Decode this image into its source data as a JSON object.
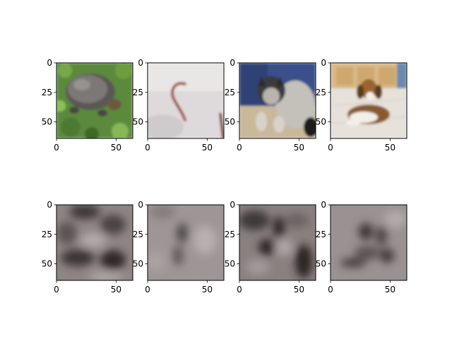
{
  "chart_data": {
    "type": "image-grid",
    "rows": 2,
    "cols": 4,
    "xlim": [
      0,
      64
    ],
    "ylim": [
      64,
      0
    ],
    "xticks": [
      0,
      50
    ],
    "yticks": [
      0,
      25,
      50
    ],
    "panels": [
      {
        "row": 0,
        "subject": "turtle on grass",
        "kind": "photo",
        "palette": [
          "#5b8a3c",
          "#3f6b2a",
          "#77706a",
          "#4a4845",
          "#8fb85a"
        ]
      },
      {
        "row": 0,
        "subject": "earthworm on white background",
        "kind": "photo",
        "palette": [
          "#e6e3e3",
          "#d0cccd",
          "#9b4a2c",
          "#b9b4b4"
        ]
      },
      {
        "row": 0,
        "subject": "grey husky puppy on blue blanket",
        "kind": "photo",
        "palette": [
          "#3b4f8a",
          "#c9b89a",
          "#b5b1ac",
          "#2a2a2a",
          "#e7ddd0"
        ]
      },
      {
        "row": 0,
        "subject": "beagle lying on tiled floor",
        "kind": "photo",
        "palette": [
          "#d9b98a",
          "#e4e0da",
          "#8a5a2e",
          "#f2efe9",
          "#3a2a1e"
        ]
      },
      {
        "row": 1,
        "subject": "reconstruction of turtle",
        "kind": "blurred",
        "palette": [
          "#8f8585",
          "#5a5252",
          "#b4acac",
          "#3a3434"
        ]
      },
      {
        "row": 1,
        "subject": "reconstruction of earthworm",
        "kind": "blurred",
        "palette": [
          "#9e9696",
          "#645c5c",
          "#b8b0b0"
        ]
      },
      {
        "row": 1,
        "subject": "reconstruction of husky",
        "kind": "blurred",
        "palette": [
          "#8a8080",
          "#3e3838",
          "#b0a8a8",
          "#6a6262"
        ]
      },
      {
        "row": 1,
        "subject": "reconstruction of beagle",
        "kind": "blurred",
        "palette": [
          "#9a9292",
          "#4a4242",
          "#b4acac"
        ]
      }
    ]
  }
}
